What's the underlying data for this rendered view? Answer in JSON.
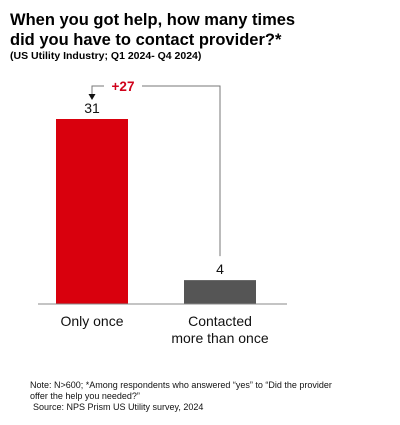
{
  "title_line1": "When you got help, how many times",
  "title_line2": "did you have to contact provider?*",
  "subtitle": "(US Utility Industry; Q1 2024- Q4 2024)",
  "chart_data": {
    "type": "bar",
    "categories": [
      "Only once",
      "Contacted more than once"
    ],
    "category_lines": [
      [
        "Only once"
      ],
      [
        "Contacted",
        "more than once"
      ]
    ],
    "values": [
      31,
      4
    ],
    "value_labels": [
      "31",
      "4"
    ],
    "colors": [
      "#d9000d",
      "#555555"
    ],
    "annotation": {
      "text": "+27",
      "color": "#d0021b"
    },
    "xlabel": "",
    "ylabel": "",
    "grid": false
  },
  "footnote": {
    "line1": "Note: N>600; *Among respondents who answered “yes” to “Did the provider",
    "line2": "offer the help you needed?”",
    "source": "Source: NPS Prism US Utility survey, 2024"
  }
}
